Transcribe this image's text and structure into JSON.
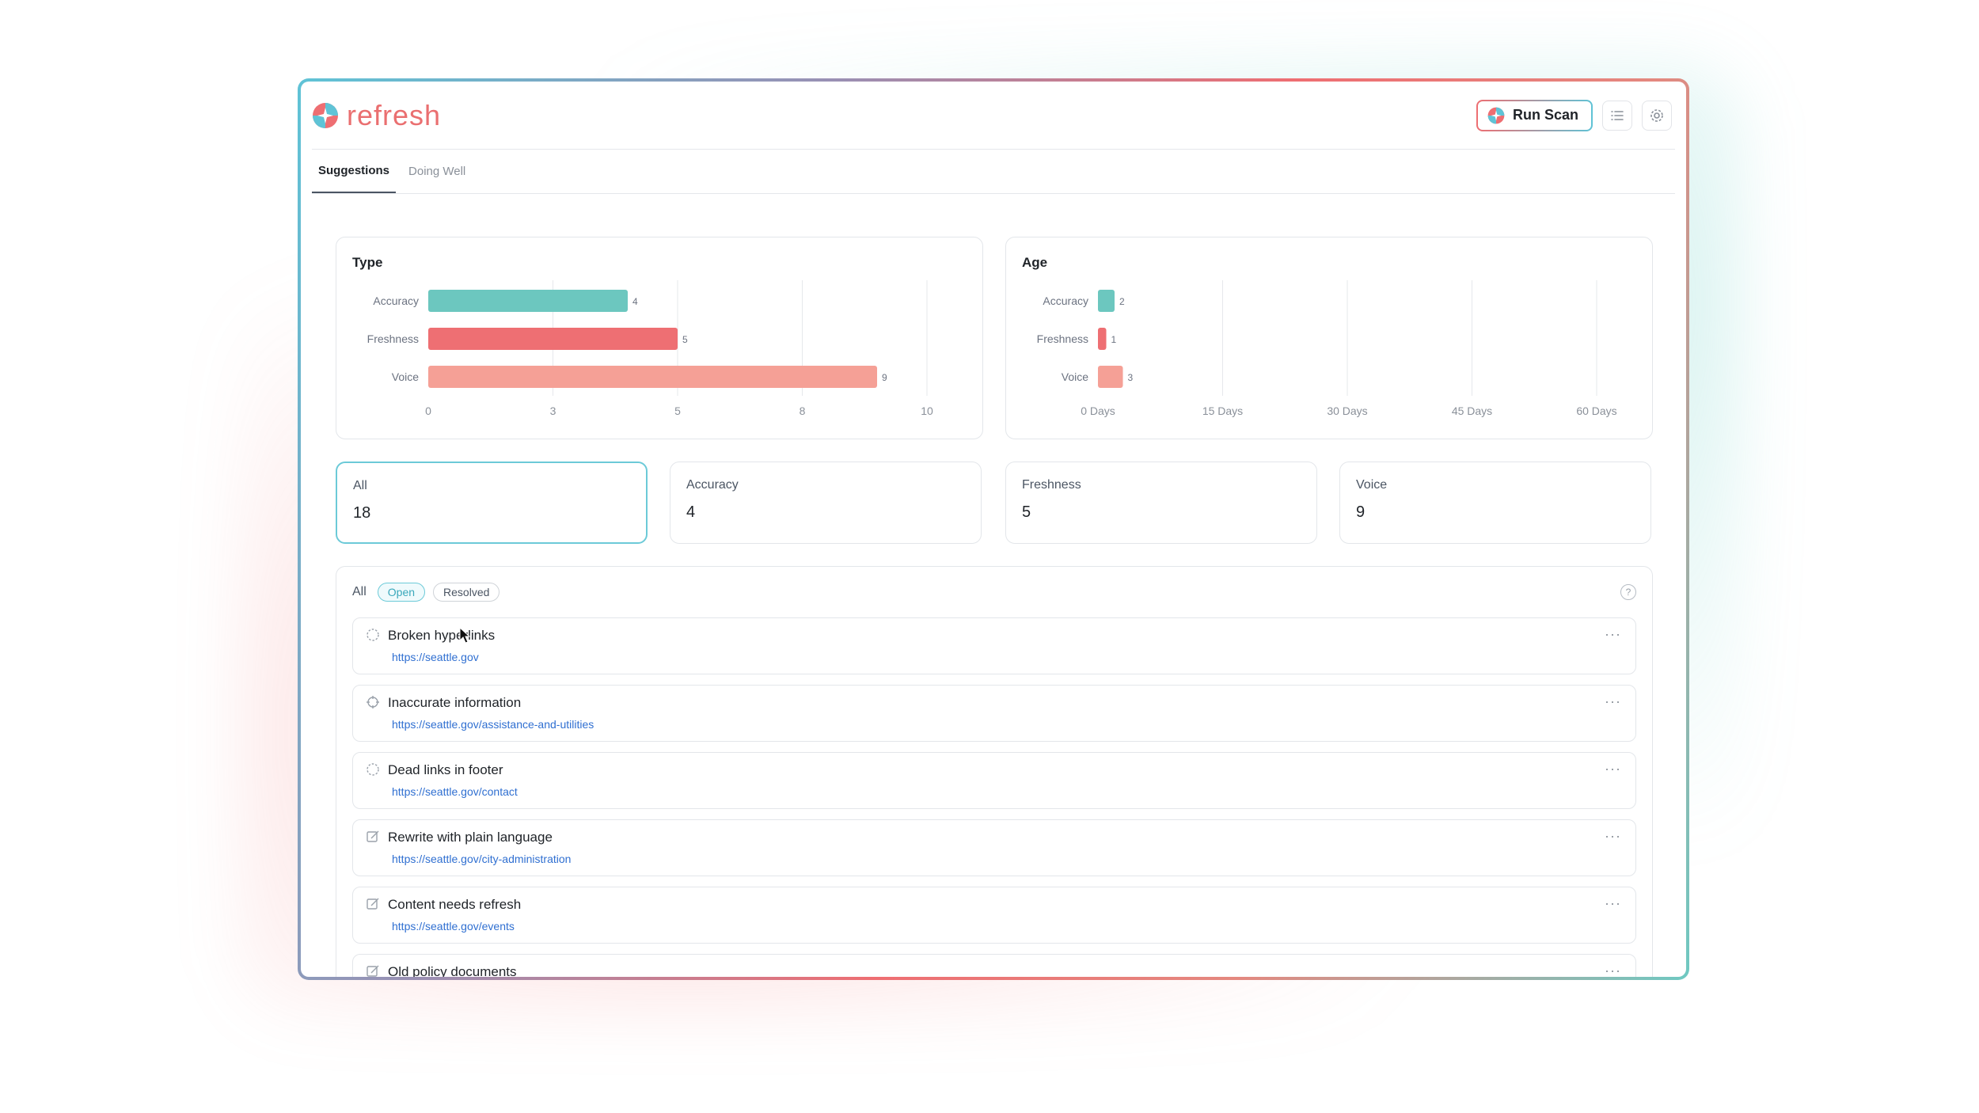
{
  "app": {
    "name": "refresh"
  },
  "header": {
    "run_scan_label": "Run Scan"
  },
  "icons": {
    "list": "list-icon",
    "settings": "gear-icon",
    "help": "help-circle-icon",
    "more": "more-icon"
  },
  "tabs": [
    {
      "label": "Suggestions",
      "active": true
    },
    {
      "label": "Doing Well",
      "active": false
    }
  ],
  "chart_data": [
    {
      "type": "bar",
      "orientation": "horizontal",
      "title": "Type",
      "categories": [
        "Accuracy",
        "Freshness",
        "Voice"
      ],
      "values": [
        4,
        5,
        9
      ],
      "colors": [
        "#6cc7bf",
        "#ee6f73",
        "#f5a096"
      ],
      "x_ticks": [
        "0",
        "3",
        "5",
        "8",
        "10"
      ],
      "xlim": [
        0,
        10
      ],
      "grid": true
    },
    {
      "type": "bar",
      "orientation": "horizontal",
      "title": "Age",
      "categories": [
        "Accuracy",
        "Freshness",
        "Voice"
      ],
      "values": [
        2,
        1,
        3
      ],
      "colors": [
        "#6cc7bf",
        "#ee6f73",
        "#f5a096"
      ],
      "x_ticks": [
        "0 Days",
        "15 Days",
        "30 Days",
        "45 Days",
        "60 Days"
      ],
      "xlim": [
        0,
        60
      ],
      "grid": true
    }
  ],
  "stats": [
    {
      "label": "All",
      "value": "18",
      "active": true
    },
    {
      "label": "Accuracy",
      "value": "4",
      "active": false
    },
    {
      "label": "Freshness",
      "value": "5",
      "active": false
    },
    {
      "label": "Voice",
      "value": "9",
      "active": false
    }
  ],
  "filters": {
    "all": "All",
    "open": "Open",
    "resolved": "Resolved"
  },
  "items": [
    {
      "title": "Broken hyperlinks",
      "url": "https://seattle.gov",
      "icon": "broken-link-icon"
    },
    {
      "title": "Inaccurate information",
      "url": "https://seattle.gov/assistance-and-utilities",
      "icon": "crosshair-icon"
    },
    {
      "title": "Dead links in footer",
      "url": "https://seattle.gov/contact",
      "icon": "broken-link-icon"
    },
    {
      "title": "Rewrite with plain language",
      "url": "https://seattle.gov/city-administration",
      "icon": "edit-icon"
    },
    {
      "title": "Content needs refresh",
      "url": "https://seattle.gov/events",
      "icon": "edit-icon"
    },
    {
      "title": "Old policy documents",
      "url": "",
      "icon": "edit-icon"
    }
  ],
  "colors": {
    "accent_teal": "#6ccad8",
    "accent_red": "#ee6e72",
    "link": "#2f6fd1"
  }
}
